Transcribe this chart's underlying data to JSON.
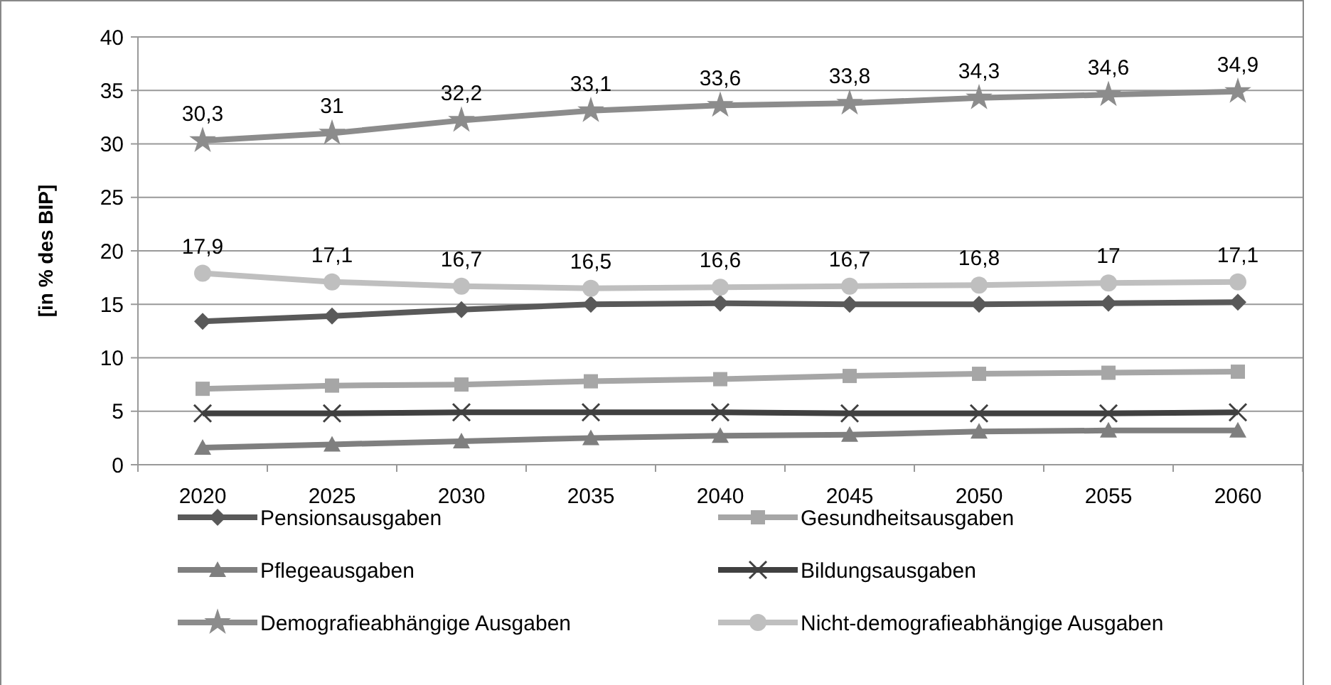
{
  "chart_data": {
    "type": "line",
    "ylabel": "[in % des BIP]",
    "categories": [
      "2020",
      "2025",
      "2030",
      "2035",
      "2040",
      "2045",
      "2050",
      "2055",
      "2060"
    ],
    "ylim": [
      0,
      40
    ],
    "yticks": [
      0,
      5,
      10,
      15,
      20,
      25,
      30,
      35,
      40
    ],
    "grid": "y",
    "legend": "bottom",
    "series": [
      {
        "name": "Pensionsausgaben",
        "color": "#595959",
        "marker": "diamond",
        "values": [
          13.4,
          13.9,
          14.5,
          15.0,
          15.1,
          15.0,
          15.0,
          15.1,
          15.2
        ]
      },
      {
        "name": "Gesundheitsausgaben",
        "color": "#a6a6a6",
        "marker": "square",
        "values": [
          7.1,
          7.4,
          7.5,
          7.8,
          8.0,
          8.3,
          8.5,
          8.6,
          8.7
        ]
      },
      {
        "name": "Pflegeausgaben",
        "color": "#7f7f7f",
        "marker": "triangle",
        "values": [
          1.6,
          1.9,
          2.2,
          2.5,
          2.7,
          2.8,
          3.1,
          3.2,
          3.2
        ]
      },
      {
        "name": "Bildungsausgaben",
        "color": "#404040",
        "marker": "cross",
        "values": [
          4.8,
          4.8,
          4.9,
          4.9,
          4.9,
          4.8,
          4.8,
          4.8,
          4.9
        ]
      },
      {
        "name": "Demografieabhängige Ausgaben",
        "color": "#8c8c8c",
        "marker": "star",
        "values": [
          30.3,
          31,
          32.2,
          33.1,
          33.6,
          33.8,
          34.3,
          34.6,
          34.9
        ],
        "value_labels": [
          "30,3",
          "31",
          "32,2",
          "33,1",
          "33,6",
          "33,8",
          "34,3",
          "34,6",
          "34,9"
        ]
      },
      {
        "name": "Nicht-demografieabhängige Ausgaben",
        "color": "#bfbfbf",
        "marker": "circle",
        "values": [
          17.9,
          17.1,
          16.7,
          16.5,
          16.6,
          16.7,
          16.8,
          17,
          17.1
        ],
        "value_labels": [
          "17,9",
          "17,1",
          "16,7",
          "16,5",
          "16,6",
          "16,7",
          "16,8",
          "17",
          "17,1"
        ]
      }
    ]
  }
}
